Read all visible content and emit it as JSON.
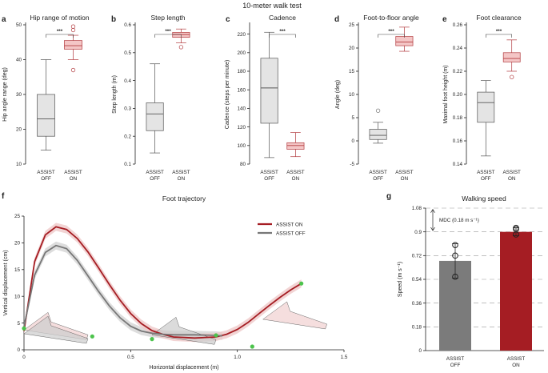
{
  "figure_title": "10-meter walk test",
  "chart_data": [
    {
      "panel": "a",
      "type": "box",
      "title": "Hip range of motion",
      "ylabel": "Hip angle range (deg)",
      "ylim": [
        10,
        50
      ],
      "yticks": [
        "10",
        "20",
        "30",
        "40",
        "50"
      ],
      "categories": [
        "ASSIST\nOFF",
        "ASSIST\nON"
      ],
      "boxes": [
        {
          "min": 14,
          "q1": 18,
          "median": 23,
          "q3": 30,
          "max": 40,
          "outliers": []
        },
        {
          "min": 40,
          "q1": 43,
          "median": 44,
          "q3": 45.5,
          "max": 47,
          "outliers": [
            37,
            48.5,
            49.5
          ]
        }
      ],
      "annotation": "***",
      "grid": false
    },
    {
      "panel": "b",
      "type": "box",
      "title": "Step length",
      "ylabel": "Step length (m)",
      "ylim": [
        0.1,
        0.6
      ],
      "yticks": [
        "0.1",
        "0.2",
        "0.3",
        "0.4",
        "0.5",
        "0.6"
      ],
      "categories": [
        "ASSIST\nOFF",
        "ASSIST\nON"
      ],
      "boxes": [
        {
          "min": 0.14,
          "q1": 0.22,
          "median": 0.28,
          "q3": 0.32,
          "max": 0.46,
          "outliers": []
        },
        {
          "min": 0.535,
          "q1": 0.555,
          "median": 0.565,
          "q3": 0.573,
          "max": 0.585,
          "outliers": [
            0.52
          ]
        }
      ],
      "annotation": "***",
      "grid": false
    },
    {
      "panel": "c",
      "type": "box",
      "title": "Cadence",
      "ylabel": "Cadence (steps per minute)",
      "ylim": [
        80,
        230
      ],
      "yticks": [
        "80",
        "100",
        "120",
        "140",
        "160",
        "180",
        "200",
        "220"
      ],
      "categories": [
        "ASSIST\nOFF",
        "ASSIST\nON"
      ],
      "boxes": [
        {
          "min": 87,
          "q1": 124,
          "median": 162,
          "q3": 194,
          "max": 222,
          "outliers": []
        },
        {
          "min": 88,
          "q1": 96,
          "median": 100,
          "q3": 103,
          "max": 114,
          "outliers": []
        }
      ],
      "annotation": "***",
      "grid": false
    },
    {
      "panel": "d",
      "type": "box",
      "title": "Foot-to-floor angle",
      "ylabel": "Angle (deg)",
      "ylim": [
        -5,
        25
      ],
      "yticks": [
        "-5",
        "0",
        "5",
        "10",
        "15",
        "20",
        "25"
      ],
      "categories": [
        "ASSIST\nOFF",
        "ASSIST\nON"
      ],
      "boxes": [
        {
          "min": -0.5,
          "q1": 0.3,
          "median": 1.2,
          "q3": 2.5,
          "max": 4,
          "outliers": [
            6.5
          ]
        },
        {
          "min": 19.3,
          "q1": 20.5,
          "median": 21.3,
          "q3": 22.5,
          "max": 24.5,
          "outliers": []
        }
      ],
      "annotation": "***",
      "grid": false
    },
    {
      "panel": "e",
      "type": "box",
      "title": "Foot clearance",
      "ylabel": "Maximal foot height (m)",
      "ylim": [
        0.14,
        0.26
      ],
      "yticks": [
        "0.14",
        "0.16",
        "0.18",
        "0.20",
        "0.22",
        "0.24",
        "0.26"
      ],
      "categories": [
        "ASSIST\nOFF",
        "ASSIST\nON"
      ],
      "boxes": [
        {
          "min": 0.147,
          "q1": 0.176,
          "median": 0.193,
          "q3": 0.202,
          "max": 0.212,
          "outliers": []
        },
        {
          "min": 0.22,
          "q1": 0.228,
          "median": 0.231,
          "q3": 0.236,
          "max": 0.247,
          "outliers": [
            0.215
          ]
        }
      ],
      "annotation": "***",
      "grid": false
    },
    {
      "panel": "f",
      "type": "line",
      "title": "Foot trajectory",
      "xlabel": "Horizontal displacement (m)",
      "ylabel": "Vertical displacement (cm)",
      "xlim": [
        0,
        1.5
      ],
      "ylim": [
        0,
        25
      ],
      "xticks": [
        "0",
        "0.5",
        "1.0",
        "1.5"
      ],
      "yticks": [
        "0",
        "5",
        "10",
        "15",
        "20",
        "25"
      ],
      "legend_position": "top-right",
      "series": [
        {
          "name": "ASSIST ON",
          "color": "#a51d23",
          "x": [
            0.0,
            0.05,
            0.1,
            0.15,
            0.2,
            0.25,
            0.3,
            0.35,
            0.4,
            0.45,
            0.5,
            0.55,
            0.6,
            0.65,
            0.7,
            0.8,
            0.9,
            0.95,
            1.0,
            1.05,
            1.1,
            1.15,
            1.2,
            1.25,
            1.3
          ],
          "y": [
            3.5,
            16.5,
            21.5,
            23,
            22.5,
            20.8,
            18.3,
            15.3,
            12.2,
            9.3,
            6.8,
            4.9,
            3.6,
            2.9,
            2.4,
            2.2,
            2.4,
            2.9,
            3.8,
            5.1,
            6.7,
            8.3,
            9.8,
            11.2,
            12.4
          ]
        },
        {
          "name": "ASSIST OFF",
          "color": "#777777",
          "x": [
            0.0,
            0.05,
            0.1,
            0.15,
            0.2,
            0.25,
            0.3,
            0.35,
            0.4,
            0.45,
            0.5,
            0.55,
            0.6,
            0.65,
            0.7,
            0.75,
            0.8,
            0.85,
            0.9,
            0.93
          ],
          "y": [
            4.3,
            14,
            18.2,
            19.5,
            18.9,
            16.7,
            13.8,
            10.9,
            8.2,
            6,
            4.4,
            3.5,
            3.1,
            2.9,
            2.8,
            2.8,
            2.8,
            2.75,
            2.7,
            2.6
          ]
        }
      ]
    },
    {
      "panel": "g",
      "type": "bar",
      "title": "Walking speed",
      "ylabel": "Speed (m s⁻¹)",
      "ylim": [
        0,
        1.08
      ],
      "yticks": [
        "0",
        "0.18",
        "0.36",
        "0.54",
        "0.72",
        "0.9",
        "1.08"
      ],
      "categories": [
        "ASSIST\nOFF",
        "ASSIST\nON"
      ],
      "values": [
        0.68,
        0.9
      ],
      "errors": [
        0.13,
        0.03
      ],
      "points": [
        [
          0.8,
          0.72,
          0.56
        ],
        [
          0.93,
          0.92,
          0.88
        ]
      ],
      "colors": [
        "#7b7b7b",
        "#a51d23"
      ],
      "mdc_label": "MDC (0.18 m s⁻¹)",
      "grid": "dashed horizontal"
    }
  ]
}
